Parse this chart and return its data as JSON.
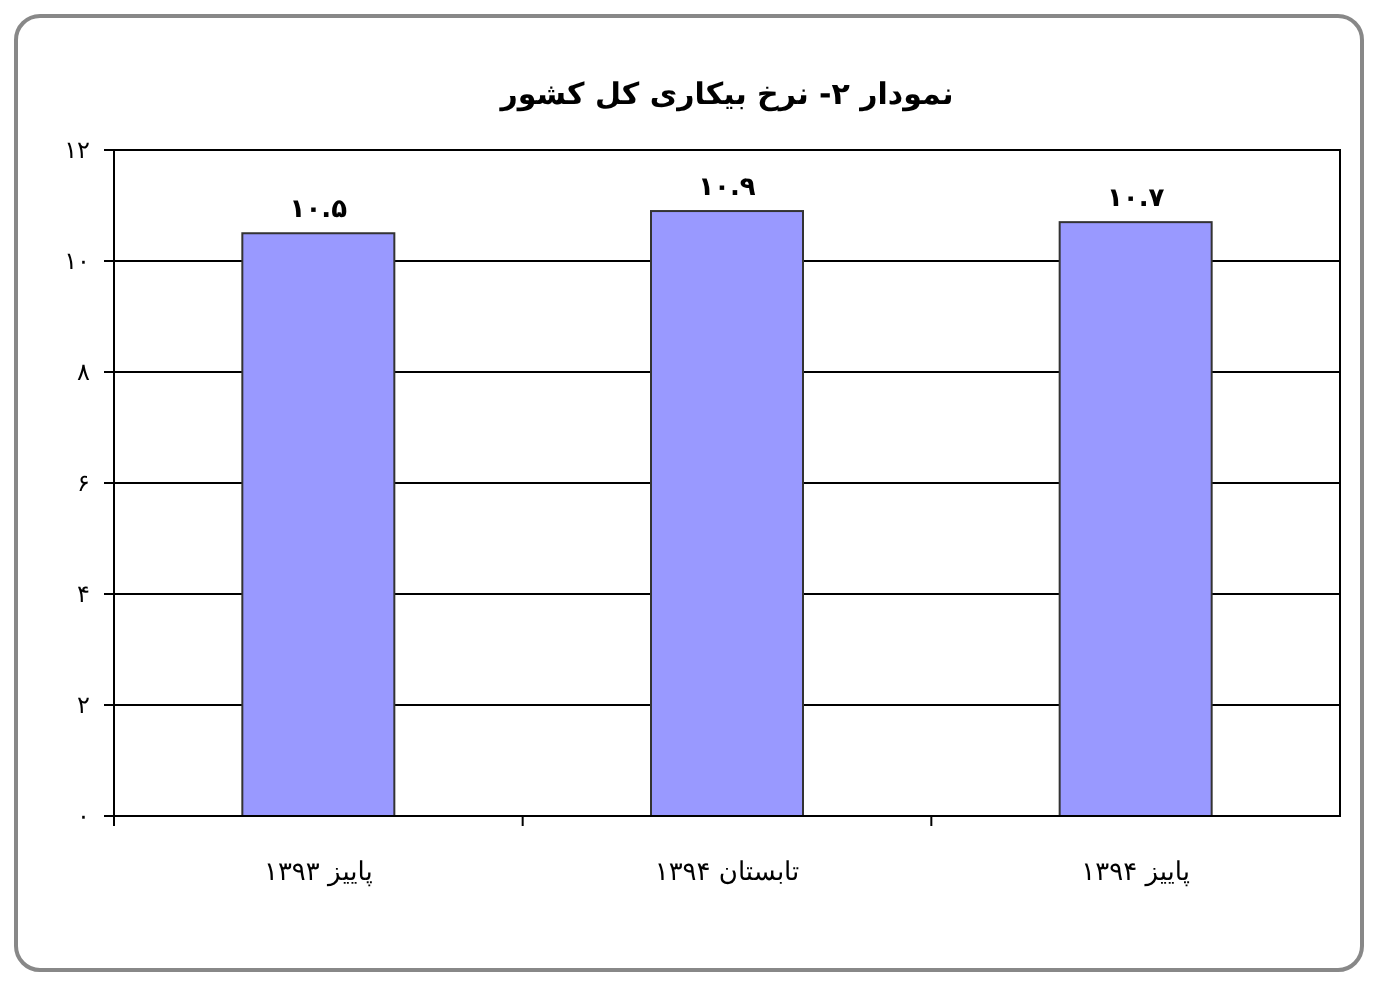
{
  "chart_data": {
    "type": "bar",
    "title": "نمودار ۲-  نرخ بیکاری کل کشور",
    "categories": [
      "پاییز ۱۳۹۳",
      "تابستان ۱۳۹۴",
      "پاییز ۱۳۹۴"
    ],
    "values": [
      10.5,
      10.9,
      10.7
    ],
    "value_labels": [
      "۱۰.۵",
      "۱۰.۹",
      "۱۰.۷"
    ],
    "color": "#9999ff",
    "ylim": [
      0,
      12
    ],
    "yticks": [
      {
        "value": 0,
        "label": "۰"
      },
      {
        "value": 2,
        "label": "۲"
      },
      {
        "value": 4,
        "label": "۴"
      },
      {
        "value": 6,
        "label": "۶"
      },
      {
        "value": 8,
        "label": "۸"
      },
      {
        "value": 10,
        "label": "۱۰"
      },
      {
        "value": 12,
        "label": "۱۲"
      }
    ],
    "grid": "y"
  }
}
